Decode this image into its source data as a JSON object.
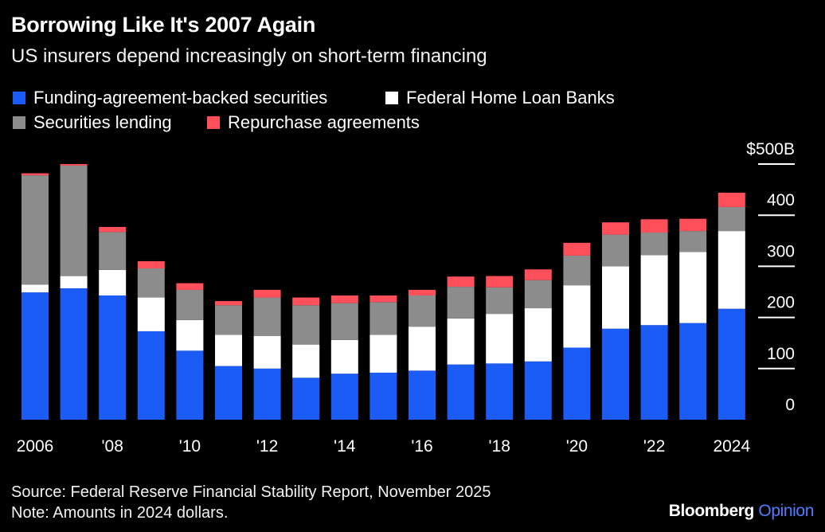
{
  "title": "Borrowing Like It's 2007 Again",
  "subtitle": "US insurers depend increasingly on short-term financing",
  "legend": [
    {
      "label": "Funding-agreement-backed securities",
      "color": "#1a5cf5"
    },
    {
      "label": "Federal Home Loan Banks",
      "color": "#ffffff"
    },
    {
      "label": "Securities lending",
      "color": "#8c8c8c"
    },
    {
      "label": "Repurchase agreements",
      "color": "#ff4f5a"
    }
  ],
  "footer": {
    "source": "Source: Federal Reserve Financial Stability Report, November 2025",
    "note": "Note: Amounts in 2024 dollars."
  },
  "brand": {
    "name": "Bloomberg",
    "suffix": "Opinion"
  },
  "chart_data": {
    "type": "bar",
    "stacked": true,
    "categories": [
      "2006",
      "2007",
      "2008",
      "2009",
      "2010",
      "2011",
      "2012",
      "2013",
      "2014",
      "2015",
      "2016",
      "2017",
      "2018",
      "2019",
      "2020",
      "2021",
      "2022",
      "2023",
      "2024"
    ],
    "x_tick_labels": [
      "2006",
      "",
      "'08",
      "",
      "'10",
      "",
      "'12",
      "",
      "'14",
      "",
      "'16",
      "",
      "'18",
      "",
      "'20",
      "",
      "'22",
      "",
      "2024"
    ],
    "series": [
      {
        "name": "Funding-agreement-backed securities",
        "color": "#1a5cf5",
        "values": [
          249,
          257,
          243,
          173,
          135,
          105,
          100,
          82,
          90,
          92,
          96,
          108,
          110,
          114,
          141,
          178,
          185,
          189,
          217
        ]
      },
      {
        "name": "Federal Home Loan Banks",
        "color": "#ffffff",
        "values": [
          15,
          24,
          50,
          66,
          60,
          61,
          64,
          65,
          66,
          74,
          86,
          90,
          97,
          104,
          122,
          122,
          137,
          139,
          152
        ]
      },
      {
        "name": "Securities lending",
        "color": "#8c8c8c",
        "values": [
          214,
          216,
          74,
          57,
          59,
          58,
          75,
          77,
          72,
          64,
          61,
          62,
          52,
          55,
          58,
          62,
          44,
          41,
          47
        ]
      },
      {
        "name": "Repurchase agreements",
        "color": "#ff4f5a",
        "values": [
          4,
          3,
          10,
          14,
          13,
          8,
          15,
          15,
          15,
          13,
          11,
          20,
          22,
          21,
          25,
          24,
          26,
          24,
          28
        ]
      }
    ],
    "yaxis": {
      "ticks": [
        0,
        100,
        200,
        300,
        400,
        500
      ],
      "tick_labels": [
        "0",
        "100",
        "200",
        "300",
        "400",
        "$500B"
      ],
      "ylim": [
        0,
        500
      ],
      "position": "right"
    },
    "grid": false,
    "legend_position": "top-left"
  }
}
